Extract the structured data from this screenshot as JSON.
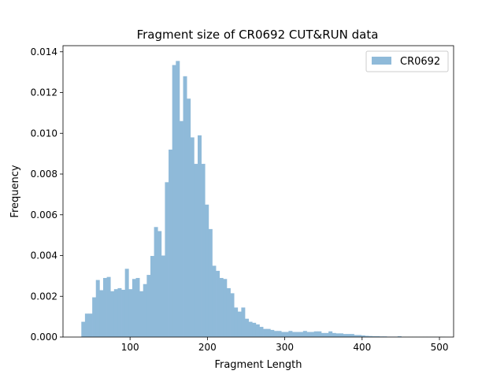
{
  "chart_data": {
    "type": "bar",
    "title": "Fragment size of CR0692 CUT&RUN data",
    "xlabel": "Fragment Length",
    "ylabel": "Frequency",
    "xlim": [
      13.3,
      518.3
    ],
    "ylim": [
      0,
      0.0143
    ],
    "xticks": [
      100,
      200,
      300,
      400,
      500
    ],
    "xtick_labels": [
      "100",
      "200",
      "300",
      "400",
      "500"
    ],
    "yticks": [
      0,
      0.002,
      0.004,
      0.006,
      0.008,
      0.01,
      0.012,
      0.014
    ],
    "ytick_labels": [
      "0.000",
      "0.002",
      "0.004",
      "0.006",
      "0.008",
      "0.010",
      "0.012",
      "0.014"
    ],
    "legend_position": "top-right",
    "bin_start": 37,
    "bin_width": 4.7,
    "series": [
      {
        "name": "CR0692",
        "color": "#8fbad9",
        "values": [
          0.00075,
          0.00115,
          0.00115,
          0.00195,
          0.0028,
          0.0023,
          0.0029,
          0.00295,
          0.00225,
          0.00235,
          0.0024,
          0.00232,
          0.00335,
          0.00235,
          0.00285,
          0.0029,
          0.00225,
          0.0026,
          0.00305,
          0.00398,
          0.0054,
          0.0052,
          0.004,
          0.0076,
          0.0092,
          0.01335,
          0.01355,
          0.0106,
          0.0128,
          0.0117,
          0.0098,
          0.0085,
          0.0099,
          0.0085,
          0.0065,
          0.0053,
          0.0035,
          0.00325,
          0.0029,
          0.00285,
          0.0024,
          0.00215,
          0.00145,
          0.00125,
          0.00145,
          0.0009,
          0.00075,
          0.0007,
          0.00062,
          0.0005,
          0.0004,
          0.0004,
          0.00035,
          0.0003,
          0.0003,
          0.00025,
          0.00025,
          0.0003,
          0.00025,
          0.00025,
          0.00025,
          0.0003,
          0.00025,
          0.00025,
          0.00028,
          0.00028,
          0.0002,
          0.0002,
          0.00028,
          0.0002,
          0.00018,
          0.00018,
          0.00015,
          0.00015,
          0.00015,
          0.0001,
          0.0001,
          8e-05,
          6e-05,
          5e-05,
          4e-05,
          4e-05,
          3e-05,
          3e-05,
          2e-05,
          2e-05,
          2e-05,
          4e-05,
          1e-05,
          1e-05,
          1e-05,
          1e-05,
          1e-05,
          1e-05,
          1e-05,
          1e-05,
          1e-05,
          1e-05,
          1e-05,
          1e-05
        ]
      }
    ]
  }
}
